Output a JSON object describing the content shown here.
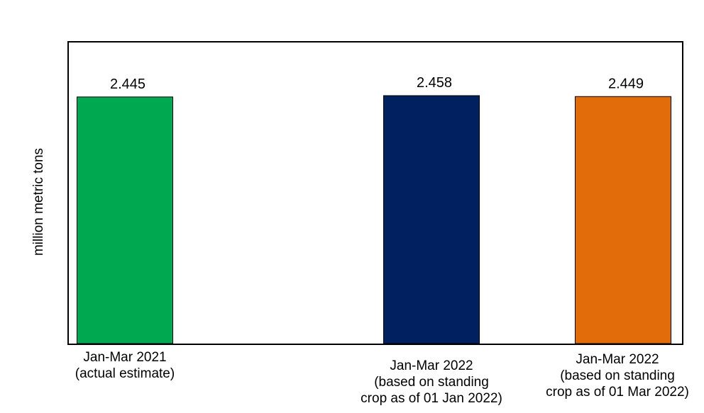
{
  "chart_data": {
    "type": "bar",
    "title": "",
    "xlabel": "",
    "ylabel": "million metric tons",
    "categories": [
      [
        "Jan-Mar 2021",
        "(actual estimate)"
      ],
      [
        "Jan-Mar 2022",
        "(based on standing",
        "crop as of 01 Jan 2022)"
      ],
      [
        "Jan-Mar 2022",
        "(based on standing",
        "crop as of 01 Mar 2022)"
      ]
    ],
    "values": [
      2.445,
      2.458,
      2.449
    ],
    "value_labels": [
      "2.445",
      "2.458",
      "2.449"
    ],
    "colors": [
      "#00A94F",
      "#002060",
      "#E36C0A"
    ],
    "grid": false,
    "legend": "none"
  }
}
